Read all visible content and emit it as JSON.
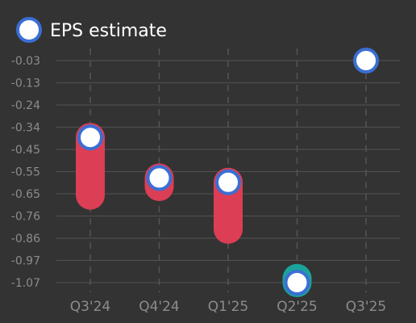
{
  "chart_data": {
    "type": "scatter",
    "categories": [
      "Q3'24",
      "Q4'24",
      "Q1'25",
      "Q2'25",
      "Q3'25"
    ],
    "yticks": [
      "-0.03",
      "-0.13",
      "-0.24",
      "-0.34",
      "-0.45",
      "-0.55",
      "-0.65",
      "-0.76",
      "-0.86",
      "-0.97",
      "-1.07"
    ],
    "ylim": [
      -1.07,
      -0.03
    ],
    "series": [
      {
        "name": "EPS estimate",
        "values": [
          -0.39,
          -0.58,
          -0.6,
          -1.07,
          -0.03
        ]
      }
    ],
    "actual_values": [
      -0.66,
      -0.62,
      -0.82,
      -1.05,
      null
    ],
    "legend_position": "top-left",
    "grid": true,
    "colors": {
      "background": "#333333",
      "grid": "#4d4d4d",
      "vgrid": "#555555",
      "marker_fill": "#ffffff",
      "marker_stroke": "#3a6fd3",
      "miss": "#dc3e55",
      "beat": "#1aa39a",
      "text": "#8c8c8c",
      "legend_text": "#ffffff"
    }
  }
}
